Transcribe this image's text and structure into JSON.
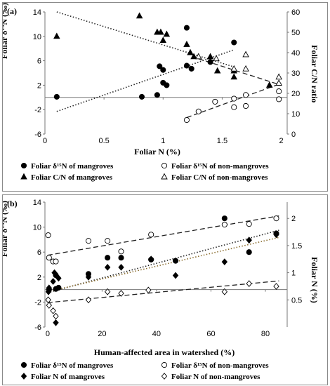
{
  "chart_data": [
    {
      "type": "scatter",
      "panel_label": "(a)",
      "xlabel": "Foliar N (%)",
      "ylabel_left": "Foliar δ¹⁵N (‰)",
      "ylabel_right": "Foliar C/N ratio",
      "xlim": [
        0,
        2.05
      ],
      "ylim_left": [
        -6,
        14
      ],
      "ylim_right": [
        0,
        60
      ],
      "xticks": [
        0,
        0.5,
        1,
        1.5,
        2
      ],
      "xtick_labels": [
        "0",
        "0.5",
        "1",
        "1.5",
        "2"
      ],
      "yticks_left": [
        -6,
        -2,
        2,
        6,
        10,
        14
      ],
      "ytick_labels_left": [
        "-6",
        "-2",
        "2",
        "6",
        "10",
        "14"
      ],
      "yticks_right": [
        0,
        10,
        20,
        30,
        40,
        50,
        60
      ],
      "ytick_labels_right": [
        "0",
        "10",
        "20",
        "30",
        "40",
        "50",
        "60"
      ],
      "grid": false,
      "legend_position": "bottom",
      "series": [
        {
          "name": "Foliar δ¹⁵N of mangroves",
          "axis": "left",
          "marker": "filled-circle",
          "points": [
            [
              0.1,
              0.1
            ],
            [
              0.82,
              0.1
            ],
            [
              0.95,
              0.4
            ],
            [
              0.97,
              5.1
            ],
            [
              1.0,
              4.5
            ],
            [
              1.0,
              2.4
            ],
            [
              1.03,
              2.0
            ],
            [
              1.2,
              11.4
            ],
            [
              1.2,
              5.2
            ],
            [
              1.24,
              4.7
            ],
            [
              1.4,
              5.8
            ],
            [
              1.6,
              9.0
            ]
          ]
        },
        {
          "name": "Foliar δ¹⁵N of non-mangroves",
          "axis": "left",
          "marker": "open-circle",
          "points": [
            [
              1.2,
              -3.7
            ],
            [
              1.3,
              -2.3
            ],
            [
              1.44,
              -0.7
            ],
            [
              1.6,
              -1.6
            ],
            [
              1.6,
              -0.2
            ],
            [
              1.7,
              -1.4
            ],
            [
              1.7,
              0.4
            ],
            [
              1.98,
              -0.3
            ],
            [
              1.98,
              1.0
            ]
          ]
        },
        {
          "name": "Foliar C/N of mangroves",
          "axis": "right",
          "marker": "filled-triangle",
          "points": [
            [
              0.1,
              48
            ],
            [
              0.8,
              58
            ],
            [
              0.95,
              50
            ],
            [
              0.98,
              50
            ],
            [
              1.0,
              46
            ],
            [
              1.03,
              49
            ],
            [
              1.2,
              44
            ],
            [
              1.23,
              40
            ],
            [
              1.26,
              38
            ],
            [
              1.4,
              38
            ],
            [
              1.46,
              31
            ],
            [
              1.6,
              31
            ],
            [
              1.6,
              28
            ],
            [
              1.9,
              24
            ]
          ]
        },
        {
          "name": "Foliar C/N of non-mangroves",
          "axis": "right",
          "marker": "open-triangle",
          "points": [
            [
              1.3,
              38
            ],
            [
              1.45,
              37
            ],
            [
              1.6,
              32
            ],
            [
              1.7,
              39
            ],
            [
              1.7,
              32
            ],
            [
              1.98,
              25
            ],
            [
              1.98,
              28
            ]
          ]
        }
      ],
      "trendlines": [
        {
          "for": "Foliar δ¹⁵N of mangroves",
          "axis": "left",
          "style": "dotted",
          "from": [
            0.1,
            -2.3
          ],
          "to": [
            1.6,
            7.8
          ]
        },
        {
          "for": "Foliar δ¹⁵N of non-mangroves",
          "axis": "left",
          "style": "dashed",
          "from": [
            1.2,
            -3.3
          ],
          "to": [
            2.0,
            2.3
          ]
        },
        {
          "for": "Foliar C/N of mangroves",
          "axis": "right",
          "style": "dotted",
          "from": [
            0.1,
            60
          ],
          "to": [
            1.6,
            33
          ]
        },
        {
          "for": "Foliar C/N of non-mangroves",
          "axis": "right",
          "style": "dashed",
          "from": [
            1.3,
            37
          ],
          "to": [
            2.0,
            24
          ]
        }
      ]
    },
    {
      "type": "scatter",
      "panel_label": "(b)",
      "xlabel": "Human-affected area in watershed (%)",
      "ylabel_left": "Foliar δ¹⁵N (‰)",
      "ylabel_right": "Foliar N (%)",
      "xlim": [
        -1,
        88
      ],
      "ylim_left": [
        -6,
        14
      ],
      "ylim_right": [
        0,
        2.3
      ],
      "xticks": [
        0,
        20,
        40,
        60,
        80
      ],
      "xtick_labels": [
        "0",
        "20",
        "40",
        "60",
        "80"
      ],
      "yticks_left": [
        -6,
        -2,
        2,
        6,
        10,
        14
      ],
      "ytick_labels_left": [
        "-6",
        "-2",
        "2",
        "6",
        "10",
        "14"
      ],
      "yticks_right": [
        0.5,
        1,
        1.5,
        2
      ],
      "ytick_labels_right": [
        "0.5",
        "1",
        "1.5",
        "2"
      ],
      "grid": false,
      "legend_position": "bottom",
      "series": [
        {
          "name": "Foliar δ¹⁵N of mangroves",
          "axis": "left",
          "marker": "filled-circle",
          "points": [
            [
              0.5,
              0.0
            ],
            [
              3,
              2.3
            ],
            [
              3,
              0.1
            ],
            [
              4,
              0.3
            ],
            [
              15,
              2.5
            ],
            [
              22,
              5.1
            ],
            [
              27,
              5.1
            ],
            [
              38,
              4.8
            ],
            [
              47,
              4.6
            ],
            [
              65,
              11.4
            ],
            [
              74,
              6.0
            ],
            [
              84,
              9.0
            ]
          ]
        },
        {
          "name": "Foliar δ¹⁵N of non-mangroves",
          "axis": "left",
          "marker": "open-circle",
          "points": [
            [
              0.2,
              8.7
            ],
            [
              0.5,
              5.1
            ],
            [
              2,
              4.5
            ],
            [
              3,
              4.5
            ],
            [
              15,
              7.8
            ],
            [
              22,
              7.8
            ],
            [
              27,
              6.1
            ],
            [
              38,
              8.8
            ],
            [
              65,
              10.4
            ],
            [
              74,
              10.5
            ],
            [
              84,
              11.4
            ]
          ]
        },
        {
          "name": "Foliar N of mangroves",
          "axis": "right",
          "marker": "filled-diamond",
          "points": [
            [
              0.3,
              0.65
            ],
            [
              0.5,
              0.72
            ],
            [
              2,
              0.84
            ],
            [
              2.5,
              1.0
            ],
            [
              3,
              0.08
            ],
            [
              4,
              0.9
            ],
            [
              15,
              0.92
            ],
            [
              22,
              1.1
            ],
            [
              27,
              1.1
            ],
            [
              38,
              1.25
            ],
            [
              47,
              0.95
            ],
            [
              65,
              1.2
            ],
            [
              74,
              1.6
            ],
            [
              84,
              1.7
            ]
          ]
        },
        {
          "name": "Foliar N of non-mangroves",
          "axis": "right",
          "marker": "open-diamond",
          "points": [
            [
              0.2,
              0.5
            ],
            [
              0.5,
              0.4
            ],
            [
              2,
              0.3
            ],
            [
              3,
              0.2
            ],
            [
              15,
              0.5
            ],
            [
              22,
              0.65
            ],
            [
              27,
              0.62
            ],
            [
              37,
              0.68
            ],
            [
              65,
              0.65
            ],
            [
              74,
              0.8
            ],
            [
              84,
              0.75
            ]
          ]
        }
      ],
      "trendlines": [
        {
          "for": "Foliar δ¹⁵N of mangroves",
          "axis": "left",
          "style": "dotted",
          "from": [
            0,
            -0.5
          ],
          "to": [
            85,
            9.5
          ]
        },
        {
          "for": "Foliar δ¹⁵N of non-mangroves",
          "axis": "left",
          "style": "dashed",
          "from": [
            0,
            5.5
          ],
          "to": [
            85,
            11.8
          ]
        },
        {
          "for": "Foliar N of mangroves",
          "axis": "right",
          "style": "dotted-brown",
          "from": [
            0,
            0.65
          ],
          "to": [
            85,
            1.65
          ]
        },
        {
          "for": "Foliar N of non-mangroves",
          "axis": "right",
          "style": "dashed",
          "from": [
            0,
            0.45
          ],
          "to": [
            85,
            0.85
          ]
        }
      ]
    }
  ]
}
